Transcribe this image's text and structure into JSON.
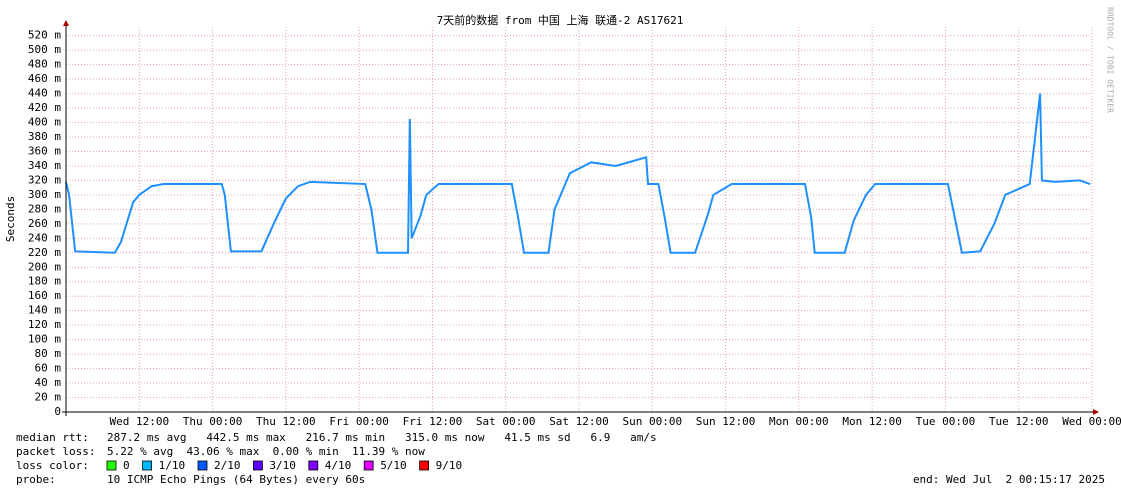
{
  "chart_data": {
    "type": "line",
    "title": "7天前的数据 from 中国 上海 联通-2 AS17621",
    "y_label": "Seconds",
    "watermark": "RRDTOOL / TOBI OETIKER",
    "x": [
      0,
      0.5,
      1.5,
      8,
      9,
      11,
      12,
      14,
      16,
      25.5,
      26,
      27,
      32,
      34,
      36,
      38,
      40,
      49,
      50,
      51,
      56,
      56.3,
      56.6,
      58,
      59,
      61,
      73,
      74,
      75,
      79,
      80,
      82.5,
      86,
      90,
      95,
      95.3,
      97,
      98,
      99,
      103,
      105,
      106,
      109,
      121,
      122,
      122.6,
      127.5,
      129,
      131,
      132.5,
      144.4,
      145.5,
      146.7,
      149.7,
      152,
      153.8,
      157.8,
      159.5,
      159.8,
      162,
      166,
      167.7
    ],
    "series": [
      {
        "name": "median rtt:",
        "color": "#1e90ff",
        "values": [
          318,
          300,
          222,
          220,
          235,
          290,
          300,
          312,
          315,
          315,
          300,
          222,
          222,
          260,
          295,
          312,
          318,
          315,
          280,
          220,
          220,
          405,
          240,
          270,
          300,
          315,
          315,
          270,
          220,
          220,
          280,
          330,
          345,
          340,
          352,
          315,
          315,
          270,
          220,
          220,
          270,
          300,
          315,
          315,
          270,
          220,
          220,
          265,
          300,
          315,
          315,
          270,
          220,
          222,
          260,
          300,
          315,
          440,
          320,
          318,
          320,
          315
        ]
      }
    ],
    "xlim": [
      0,
      168
    ],
    "xticks": [
      {
        "value": 12,
        "label": "Wed 12:00"
      },
      {
        "value": 24,
        "label": "Thu 00:00"
      },
      {
        "value": 36,
        "label": "Thu 12:00"
      },
      {
        "value": 48,
        "label": "Fri 00:00"
      },
      {
        "value": 60,
        "label": "Fri 12:00"
      },
      {
        "value": 72,
        "label": "Sat 00:00"
      },
      {
        "value": 84,
        "label": "Sat 12:00"
      },
      {
        "value": 96,
        "label": "Sun 00:00"
      },
      {
        "value": 108,
        "label": "Sun 12:00"
      },
      {
        "value": 120,
        "label": "Mon 00:00"
      },
      {
        "value": 132,
        "label": "Mon 12:00"
      },
      {
        "value": 144,
        "label": "Tue 00:00"
      },
      {
        "value": 156,
        "label": "Tue 12:00"
      },
      {
        "value": 168,
        "label": "Wed 00:00"
      }
    ],
    "ylim": [
      0,
      532
    ],
    "yticks": [
      0,
      {
        "value": 20,
        "label": "20 m"
      },
      {
        "value": 40,
        "label": "40 m"
      },
      {
        "value": 60,
        "label": "60 m"
      },
      {
        "value": 80,
        "label": "80 m"
      },
      {
        "value": 100,
        "label": "100 m"
      },
      {
        "value": 120,
        "label": "120 m"
      },
      {
        "value": 140,
        "label": "140 m"
      },
      {
        "value": 160,
        "label": "160 m"
      },
      {
        "value": 180,
        "label": "180 m"
      },
      {
        "value": 200,
        "label": "200 m"
      },
      {
        "value": 220,
        "label": "220 m"
      },
      {
        "value": 240,
        "label": "240 m"
      },
      {
        "value": 260,
        "label": "260 m"
      },
      {
        "value": 280,
        "label": "280 m"
      },
      {
        "value": 300,
        "label": "300 m"
      },
      {
        "value": 320,
        "label": "320 m"
      },
      {
        "value": 340,
        "label": "340 m"
      },
      {
        "value": 360,
        "label": "360 m"
      },
      {
        "value": 380,
        "label": "380 m"
      },
      {
        "value": 400,
        "label": "400 m"
      },
      {
        "value": 420,
        "label": "420 m"
      },
      {
        "value": 440,
        "label": "440 m"
      },
      {
        "value": 460,
        "label": "460 m"
      },
      {
        "value": 480,
        "label": "480 m"
      },
      {
        "value": 500,
        "label": "500 m"
      },
      {
        "value": 520,
        "label": "520 m"
      }
    ],
    "grid": true
  },
  "footer": {
    "rtt_stats": "287.2 ms avg   442.5 ms max   216.7 ms min   315.0 ms now   41.5 ms sd   6.9   am/s",
    "loss_label": "packet loss:",
    "loss_stats": "5.22 % avg  43.06 % max  0.00 % min  11.39 % now",
    "color_label": "loss color:",
    "loss_colors": [
      {
        "label": "0",
        "color": "#26ff00"
      },
      {
        "label": "1/10",
        "color": "#00b8ff"
      },
      {
        "label": "2/10",
        "color": "#0059ff"
      },
      {
        "label": "3/10",
        "color": "#5e00ff"
      },
      {
        "label": "4/10",
        "color": "#7e00ff"
      },
      {
        "label": "5/10",
        "color": "#dd00ff"
      },
      {
        "label": "9/10",
        "color": "#ff0000"
      }
    ],
    "probe_label": "probe:",
    "probe": "10 ICMP Echo Pings (64 Bytes) every 60s",
    "end": "end: Wed Jul  2 00:15:17 2025"
  }
}
